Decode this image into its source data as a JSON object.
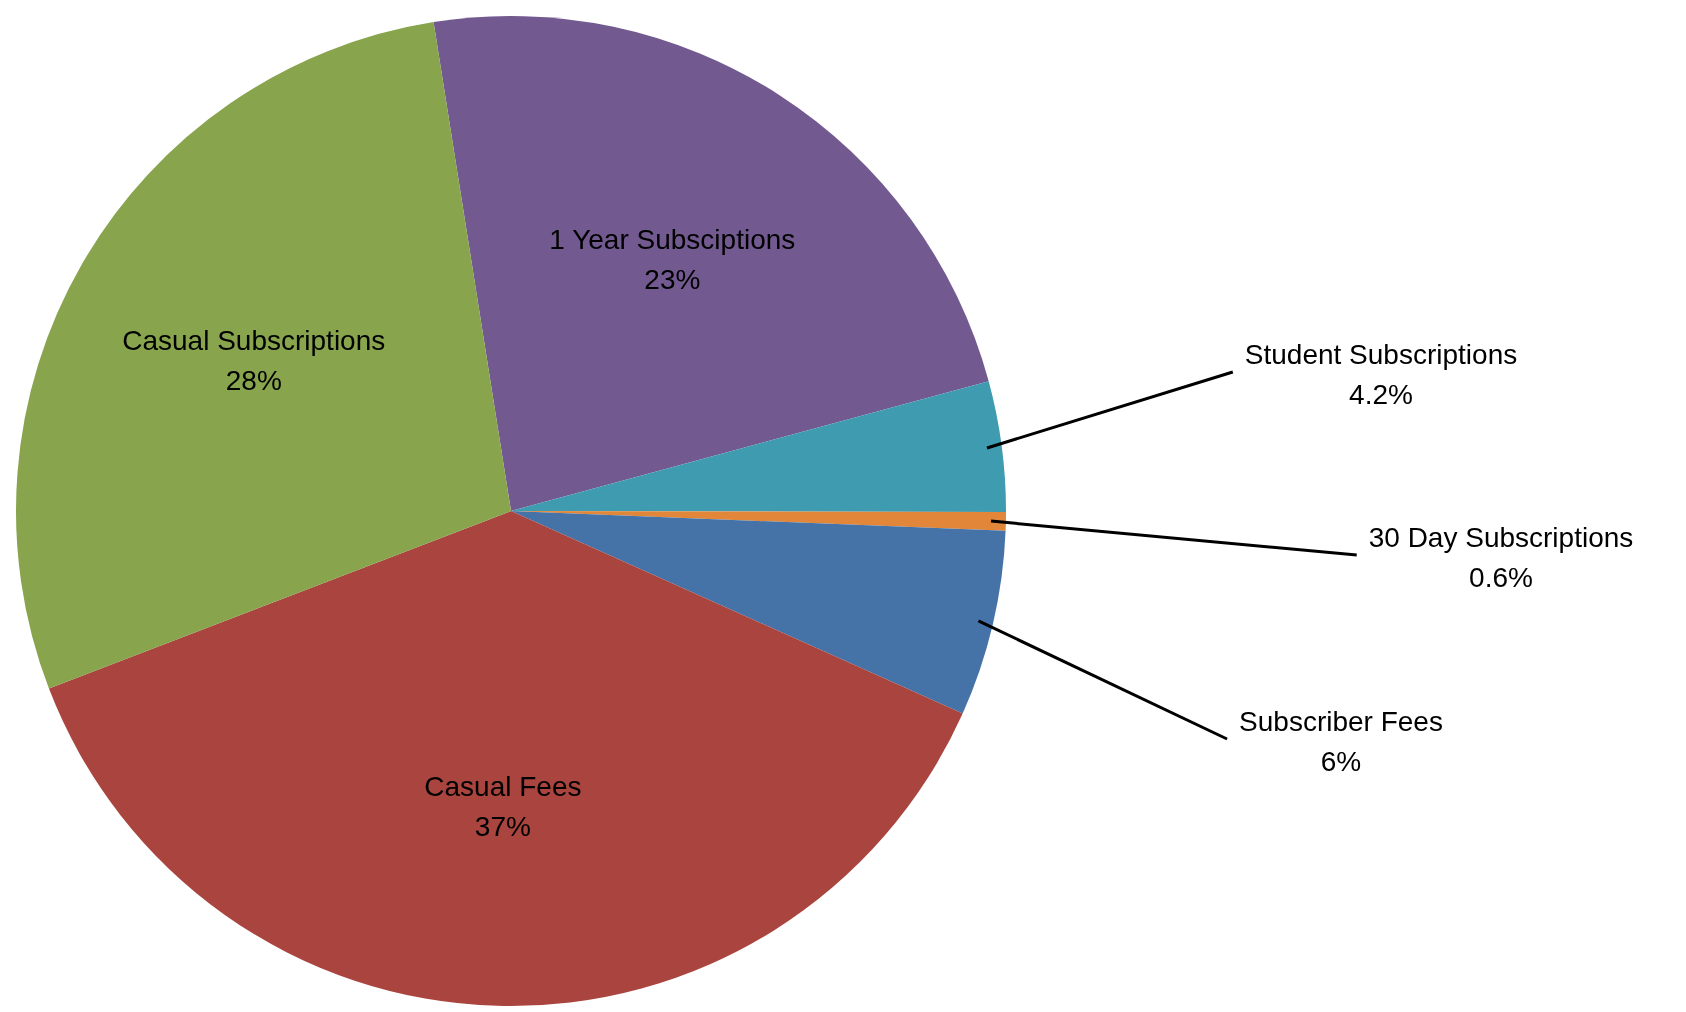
{
  "chart_data": {
    "type": "pie",
    "categories": [
      "1 Year Subsciptions",
      "Student Subscriptions",
      "30 Day Subscriptions",
      "Subscriber Fees",
      "Casual Fees",
      "Casual Subscriptions"
    ],
    "values": [
      23,
      4.2,
      0.6,
      6,
      37,
      28
    ],
    "value_labels": [
      "23%",
      "4.2%",
      "0.6%",
      "6%",
      "37%",
      "28%"
    ],
    "colors": [
      "#725a91",
      "#3e9bb0",
      "#e2873a",
      "#4573a7",
      "#a9443f",
      "#88a44d"
    ]
  }
}
